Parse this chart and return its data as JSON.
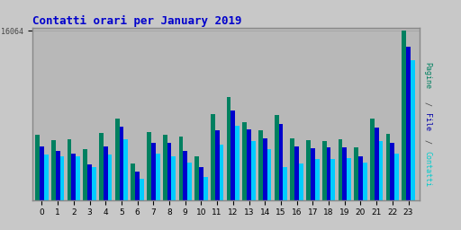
{
  "title": "Contatti orari per January 2019",
  "title_color": "#0000cc",
  "title_fontsize": 9,
  "title_fontfamily": "monospace",
  "xlabel_values": [
    0,
    1,
    2,
    3,
    4,
    5,
    6,
    7,
    8,
    9,
    10,
    11,
    12,
    13,
    14,
    15,
    16,
    17,
    18,
    19,
    20,
    21,
    22,
    23
  ],
  "ylabel_tick": "16064",
  "background_color": "#c8c8c8",
  "plot_bg_color": "#b8b8b8",
  "grid_color": "#a8a8a8",
  "ytick_label_color": "#444444",
  "bar_width": 0.27,
  "pagine": [
    6200,
    5700,
    5800,
    4800,
    6400,
    7700,
    3500,
    6500,
    6200,
    6000,
    4200,
    8200,
    9800,
    7400,
    6600,
    8100,
    5900,
    5700,
    5600,
    5800,
    5000,
    7700,
    6300,
    16064
  ],
  "file": [
    5100,
    4700,
    4400,
    3400,
    5100,
    7000,
    2700,
    5400,
    5400,
    4700,
    3100,
    6600,
    8500,
    6700,
    5900,
    7200,
    5100,
    4900,
    5000,
    5000,
    4200,
    6900,
    5400,
    14600
  ],
  "contatti": [
    4300,
    4200,
    4200,
    3100,
    4300,
    5800,
    2000,
    4400,
    4200,
    3600,
    2200,
    5300,
    7100,
    5600,
    4800,
    3100,
    3500,
    3900,
    3900,
    4000,
    3600,
    5600,
    4400,
    13300
  ],
  "pagine_color": "#008060",
  "file_color": "#0000cc",
  "contatti_color": "#00ccff",
  "border_color": "#888888",
  "right_label_pagine_color": "#008060",
  "right_label_file_color": "#0000aa",
  "right_label_contatti_color": "#00cccc"
}
